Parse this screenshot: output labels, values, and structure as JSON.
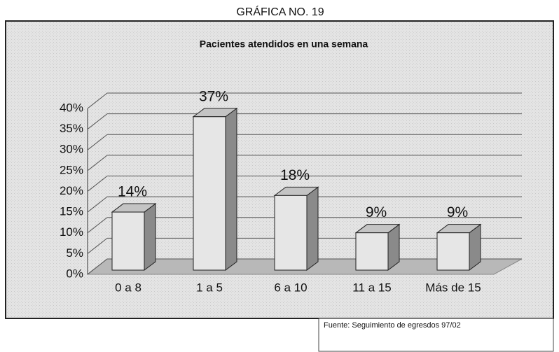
{
  "header": "GRÁFICA NO. 19",
  "chart_data": {
    "type": "bar",
    "title": "Pacientes atendidos en una semana",
    "categories": [
      "0 a 8",
      "1 a 5",
      "6 a 10",
      "11 a 15",
      "Más de 15"
    ],
    "values": [
      14,
      37,
      18,
      9,
      9
    ],
    "value_labels": [
      "14%",
      "37%",
      "18%",
      "9%",
      "9%"
    ],
    "color": "#e6e6e6",
    "ylim": [
      0,
      40
    ],
    "yticks": [
      {
        "value": 0,
        "label": "0%"
      },
      {
        "value": 5,
        "label": "5%"
      },
      {
        "value": 10,
        "label": "10%"
      },
      {
        "value": 15,
        "label": "15%"
      },
      {
        "value": 20,
        "label": "20%"
      },
      {
        "value": 25,
        "label": "25%"
      },
      {
        "value": 30,
        "label": "30%"
      },
      {
        "value": 35,
        "label": "35%"
      },
      {
        "value": 40,
        "label": "40%"
      }
    ],
    "grid": true
  },
  "source": "Fuente: Seguimiento de egresdos 97/02"
}
